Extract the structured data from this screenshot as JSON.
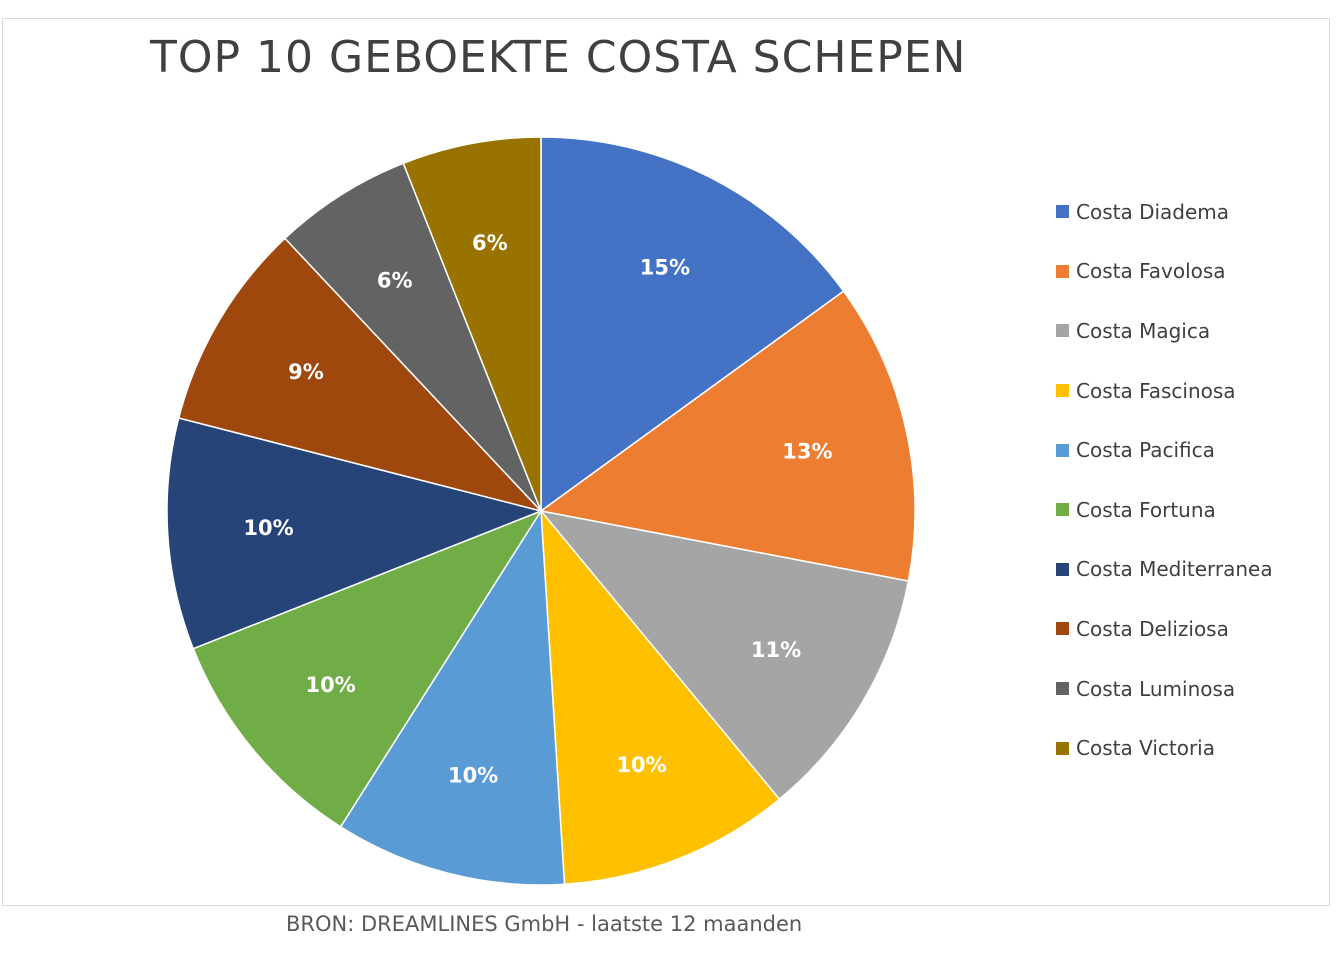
{
  "chart_data": {
    "type": "pie",
    "title": "TOP 10 GEBOEKTE COSTA SCHEPEN",
    "categories": [
      "Costa Diadema",
      "Costa Favolosa",
      "Costa Magica",
      "Costa Fascinosa",
      "Costa Pacifica",
      "Costa Fortuna",
      "Costa Mediterranea",
      "Costa Deliziosa",
      "Costa Luminosa",
      "Costa Victoria"
    ],
    "values": [
      15,
      13,
      11,
      10,
      10,
      10,
      10,
      9,
      6,
      6
    ],
    "data_labels": [
      "15%",
      "13%",
      "11%",
      "10%",
      "10%",
      "10%",
      "10%",
      "9%",
      "6%",
      "6%"
    ],
    "colors": [
      "#4472C4",
      "#ED7D31",
      "#A5A5A5",
      "#FFC000",
      "#5B9BD5",
      "#70AD47",
      "#264478",
      "#9E480E",
      "#636363",
      "#997300"
    ],
    "legend_position": "right",
    "start_angle": "top, clockwise"
  },
  "source_note": "BRON: DREAMLINES GmbH - laatste 12 maanden"
}
